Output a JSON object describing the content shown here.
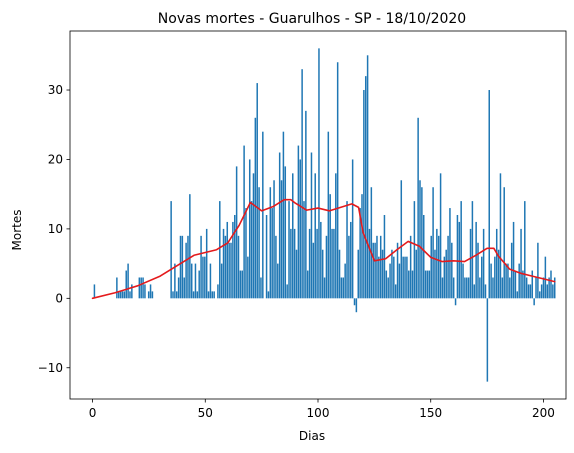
{
  "chart_data": {
    "type": "bar",
    "title": "Novas mortes - Guarulhos - SP - 18/10/2020",
    "xlabel": "Dias",
    "ylabel": "Mortes",
    "xlim": [
      -10,
      210
    ],
    "ylim": [
      -14.5,
      38.5
    ],
    "xticks": [
      0,
      50,
      100,
      150,
      200
    ],
    "yticks": [
      -10,
      0,
      10,
      20,
      30
    ],
    "grid": false,
    "colors": {
      "bars": "#1f77b4",
      "trend": "#e41a1c"
    },
    "series": [
      {
        "type": "bar",
        "x_start": 0,
        "values": [
          0,
          2,
          0,
          0,
          0,
          0,
          0,
          0,
          0,
          0,
          0,
          0,
          0,
          3,
          1,
          1,
          1,
          1,
          4,
          5,
          1,
          2,
          0,
          0,
          0,
          3,
          3,
          3,
          2,
          0,
          1,
          2,
          1,
          0,
          0,
          0,
          0,
          0,
          0,
          0,
          0,
          0,
          14,
          1,
          5,
          1,
          3,
          9,
          9,
          3,
          8,
          9,
          15,
          5,
          1,
          5,
          1,
          4,
          9,
          6,
          6,
          10,
          1,
          5,
          1,
          1,
          0,
          2,
          14,
          5,
          10,
          9,
          11,
          8,
          8,
          11,
          12,
          19,
          9,
          4,
          4,
          22,
          13,
          6,
          20,
          14,
          18,
          26,
          31,
          16,
          3,
          24,
          0,
          12,
          1,
          16,
          13,
          17,
          9,
          5,
          21,
          17,
          24,
          19,
          2,
          14,
          10,
          18,
          10,
          7,
          22,
          20,
          33,
          14,
          27,
          4,
          10,
          21,
          8,
          18,
          10,
          36,
          11,
          7,
          3,
          9,
          24,
          15,
          10,
          10,
          18,
          34,
          7,
          3,
          3,
          5,
          14,
          9,
          11,
          20,
          -1,
          -2,
          7,
          13,
          15,
          30,
          32,
          35,
          10,
          16,
          8,
          8,
          9,
          6,
          9,
          7,
          12,
          4,
          3,
          5,
          7,
          6,
          2,
          8,
          5,
          17,
          6,
          6,
          6,
          4,
          9,
          4,
          14,
          7,
          26,
          17,
          16,
          12,
          4,
          4,
          4,
          9,
          16,
          7,
          10,
          9,
          18,
          3,
          6,
          7,
          9,
          13,
          8,
          3,
          -1,
          12,
          11,
          14,
          5,
          3,
          3,
          3,
          10,
          14,
          2,
          11,
          8,
          3,
          6,
          10,
          2,
          -12,
          30,
          5,
          3,
          6,
          10,
          7,
          18,
          3,
          16,
          5,
          5,
          3,
          8,
          11,
          4,
          1,
          5,
          10,
          4,
          14,
          3,
          2,
          2,
          4,
          -1,
          3,
          8,
          1,
          2,
          3,
          6,
          2,
          3,
          4,
          2,
          3
        ]
      },
      {
        "type": "line",
        "x": [
          0,
          10,
          20,
          30,
          40,
          45,
          50,
          55,
          60,
          65,
          70,
          75,
          80,
          85,
          88,
          90,
          95,
          100,
          105,
          110,
          115,
          118,
          120,
          125,
          130,
          135,
          140,
          145,
          150,
          155,
          160,
          165,
          170,
          175,
          178,
          180,
          185,
          190,
          195,
          200,
          205
        ],
        "values": [
          0,
          0.8,
          1.8,
          3.2,
          5.2,
          6.2,
          6.6,
          7.0,
          8.0,
          10.5,
          13.8,
          12.6,
          13.2,
          14.2,
          14.2,
          13.7,
          12.7,
          13.0,
          12.6,
          13.1,
          13.6,
          13.1,
          9.5,
          5.4,
          5.7,
          7.0,
          8.2,
          7.5,
          5.9,
          5.3,
          5.4,
          5.3,
          6.2,
          7.2,
          7.2,
          6.1,
          4.2,
          3.6,
          3.2,
          2.8,
          2.4
        ]
      }
    ]
  }
}
